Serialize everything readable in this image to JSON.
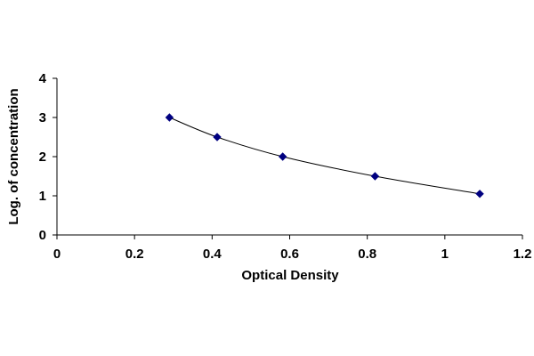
{
  "chart_data": {
    "type": "scatter",
    "title": "",
    "xlabel": "Optical Density",
    "ylabel": "Log. of concentration",
    "xlim": [
      0,
      1.2
    ],
    "ylim": [
      0,
      4
    ],
    "x_ticks": [
      "0",
      "0.2",
      "0.4",
      "0.6",
      "0.8",
      "1",
      "1.2"
    ],
    "y_ticks": [
      "0",
      "1",
      "2",
      "3",
      "4"
    ],
    "grid": false,
    "legend": "none",
    "series": [
      {
        "marker": "diamond",
        "line": "smooth",
        "color": "#000080",
        "points": [
          {
            "x": 0.29,
            "y": 3.0
          },
          {
            "x": 0.413,
            "y": 2.5
          },
          {
            "x": 0.582,
            "y": 2.0
          },
          {
            "x": 0.82,
            "y": 1.5
          },
          {
            "x": 1.09,
            "y": 1.05
          }
        ]
      }
    ]
  }
}
